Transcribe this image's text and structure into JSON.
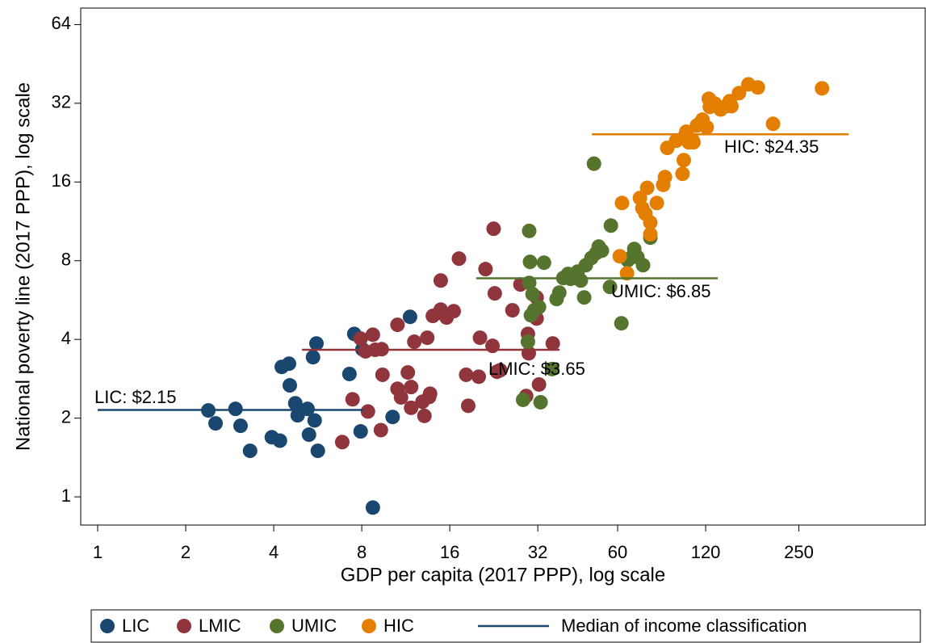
{
  "chart_data": {
    "type": "scatter",
    "x_label": "GDP per capita (2017 PPP), log scale",
    "y_label": "National poverty line (2017 PPP), log scale",
    "xscale": "log",
    "yscale": "log",
    "xlim": [
      0.875,
      676
    ],
    "ylim": [
      0.78,
      74
    ],
    "xticks": [
      1,
      2,
      4,
      8,
      16,
      32,
      60,
      120,
      250
    ],
    "yticks": [
      1,
      2,
      4,
      8,
      16,
      32,
      64
    ],
    "series": [
      {
        "name": "LIC",
        "color": "#1a476f",
        "x": [
          2.39,
          2.53,
          2.96,
          3.08,
          3.32,
          3.94,
          4.2,
          4.26,
          4.51,
          4.54,
          4.74,
          4.83,
          4.9,
          5.22,
          5.28,
          5.45,
          5.52,
          5.6,
          5.66,
          7.26,
          7.54,
          7.93,
          8.04,
          8.73,
          10.2,
          11.7
        ],
        "values": [
          2.14,
          1.91,
          2.17,
          1.87,
          1.5,
          1.69,
          1.64,
          3.14,
          3.23,
          2.67,
          2.28,
          2.05,
          2.14,
          2.17,
          1.73,
          3.42,
          1.96,
          3.86,
          1.5,
          2.95,
          4.2,
          1.78,
          3.67,
          0.91,
          2.02,
          4.88
        ]
      },
      {
        "name": "LMIC",
        "color": "#90353b",
        "x": [
          6.86,
          7.44,
          7.93,
          8.24,
          8.4,
          8.73,
          8.89,
          9.3,
          9.36,
          9.42,
          10.6,
          10.6,
          10.9,
          11.5,
          11.8,
          11.8,
          12.1,
          12.9,
          13.1,
          13.4,
          13.6,
          13.7,
          14.0,
          14.7,
          14.9,
          15.6,
          14.9,
          16.5,
          17.2,
          18.2,
          18.5,
          20.1,
          20.3,
          21.2,
          22.4,
          22.8,
          22.6,
          23.2,
          26.2,
          27.9,
          29.6,
          29.8,
          31.7,
          31.7,
          32.3,
          36.0,
          29.2,
          23.8
        ],
        "values": [
          1.62,
          2.36,
          4.03,
          3.6,
          2.12,
          4.17,
          3.65,
          1.8,
          3.67,
          2.93,
          4.55,
          2.59,
          2.4,
          2.99,
          2.63,
          2.19,
          3.92,
          2.31,
          2.04,
          4.06,
          2.41,
          2.48,
          4.92,
          5.06,
          5.2,
          4.85,
          6.72,
          5.13,
          8.15,
          2.93,
          2.23,
          2.88,
          4.06,
          7.43,
          3.78,
          6.0,
          10.6,
          3.01,
          5.17,
          6.49,
          4.2,
          3.54,
          5.79,
          4.81,
          2.69,
          3.86,
          2.43,
          3.05
        ]
      },
      {
        "name": "UMIC",
        "color": "#55752f",
        "x": [
          28.5,
          29.6,
          29.9,
          30.1,
          29.9,
          30.3,
          30.7,
          31.1,
          32.3,
          32.7,
          33.6,
          35.8,
          37.1,
          37.9,
          39.1,
          40.6,
          41.4,
          42.2,
          43.0,
          43.8,
          44.9,
          46.1,
          46.7,
          48.8,
          49.8,
          50.7,
          51.7,
          53.0,
          56.5,
          56.9,
          61.8,
          65.0,
          65.8,
          68.4,
          70.1,
          73.3,
          77.6
        ],
        "values": [
          2.35,
          3.92,
          10.4,
          7.92,
          6.58,
          4.95,
          5.96,
          5.17,
          5.32,
          2.3,
          7.86,
          3.08,
          5.71,
          6.04,
          6.87,
          7.12,
          6.82,
          6.87,
          6.92,
          7.27,
          6.72,
          5.79,
          7.69,
          8.2,
          18.8,
          8.56,
          9.06,
          8.74,
          6.35,
          10.9,
          4.61,
          8.03,
          8.15,
          8.87,
          8.26,
          7.69,
          9.8
        ]
      },
      {
        "name": "HIC",
        "color": "#e37e00",
        "x": [
          61.0,
          62.1,
          64.6,
          71.5,
          72.9,
          74.7,
          75.7,
          77.6,
          77.6,
          81.7,
          85.9,
          87.1,
          88.7,
          95.1,
          100,
          101,
          101,
          103,
          105,
          108,
          109,
          112,
          115,
          117,
          121,
          123,
          124,
          129,
          135,
          141,
          145,
          147,
          156,
          168,
          181,
          204,
          300
        ],
        "values": [
          8.32,
          13.3,
          7.16,
          13.9,
          12.7,
          12.1,
          15.2,
          11.2,
          10.1,
          13.3,
          15.6,
          16.7,
          21.6,
          23.0,
          17.2,
          19.4,
          23.7,
          24.9,
          22.7,
          23.2,
          22.7,
          26.3,
          26.9,
          27.7,
          25.9,
          33.3,
          31.0,
          31.9,
          30.3,
          31.2,
          32.6,
          31.2,
          35.0,
          37.8,
          36.8,
          26.7,
          36.5
        ]
      }
    ],
    "reference_lines": [
      {
        "label": "LIC: $2.15",
        "value": 2.15,
        "x_range": [
          1,
          8.1
        ]
      },
      {
        "label": "LMIC: $3.65",
        "value": 3.65,
        "x_range": [
          5,
          38
        ]
      },
      {
        "label": "UMIC: $6.85",
        "value": 6.85,
        "x_range": [
          19.7,
          132
        ]
      },
      {
        "label": "HIC: $24.35",
        "value": 24.35,
        "x_range": [
          49,
          370
        ]
      }
    ],
    "legend_line_label": "Median of income classification",
    "legend": "bottom"
  }
}
